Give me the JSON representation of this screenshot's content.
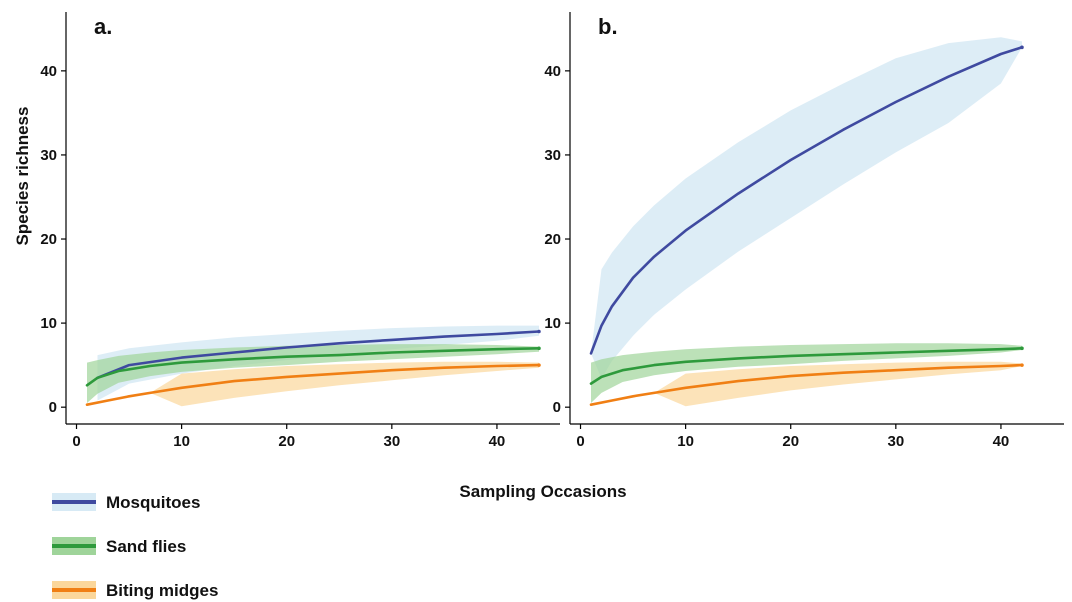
{
  "chart_data": {
    "type": "line",
    "xlabel": "Sampling Occasions",
    "ylabel": "Species richness",
    "legend": {
      "position": "bottom-left",
      "items": [
        {
          "label": "Mosquitoes",
          "line_color": "#3f4aa0",
          "fill_color": "#d7eaf5"
        },
        {
          "label": "Sand flies",
          "line_color": "#2e9a3c",
          "fill_color": "#9fd49a"
        },
        {
          "label": "Biting midges",
          "line_color": "#f07f14",
          "fill_color": "#fbd79b"
        }
      ]
    },
    "panels": [
      {
        "tag": "a.",
        "xlim": [
          -1,
          46
        ],
        "ylim": [
          -2,
          47
        ],
        "xticks": [
          0,
          10,
          20,
          30,
          40
        ],
        "yticks": [
          0,
          10,
          20,
          30,
          40
        ],
        "grid": false,
        "series": [
          {
            "name": "Mosquitoes",
            "color": "#3f4aa0",
            "band_color": "#d7eaf5",
            "x": [
              2,
              5,
              10,
              15,
              20,
              25,
              30,
              35,
              40,
              44
            ],
            "y": [
              3.5,
              5.0,
              5.9,
              6.5,
              7.1,
              7.6,
              8.0,
              8.4,
              8.7,
              9.0
            ],
            "lower": [
              0.8,
              2.8,
              4.0,
              4.9,
              5.6,
              6.3,
              6.9,
              7.4,
              7.9,
              8.5
            ],
            "upper": [
              6.2,
              7.0,
              7.7,
              8.3,
              8.7,
              9.1,
              9.4,
              9.6,
              9.7,
              9.7
            ]
          },
          {
            "name": "Sand flies",
            "color": "#2e9a3c",
            "band_color": "#9fd49a",
            "x": [
              1,
              2,
              4,
              7,
              10,
              15,
              20,
              25,
              30,
              35,
              40,
              44
            ],
            "y": [
              2.6,
              3.5,
              4.3,
              4.9,
              5.3,
              5.7,
              6.0,
              6.2,
              6.5,
              6.7,
              6.9,
              7.0
            ],
            "lower": [
              0.5,
              1.6,
              2.9,
              3.7,
              4.2,
              4.7,
              5.0,
              5.4,
              5.7,
              6.0,
              6.3,
              6.6
            ],
            "upper": [
              5.3,
              5.6,
              6.1,
              6.5,
              6.8,
              7.1,
              7.3,
              7.4,
              7.5,
              7.5,
              7.4,
              7.2
            ]
          },
          {
            "name": "Biting midges",
            "color": "#f07f14",
            "band_color": "#fbd79b",
            "x": [
              1,
              3,
              5,
              7,
              10,
              15,
              20,
              25,
              30,
              35,
              40,
              44
            ],
            "y": [
              0.3,
              0.8,
              1.3,
              1.7,
              2.3,
              3.1,
              3.6,
              4.0,
              4.4,
              4.7,
              4.9,
              5.0
            ],
            "lower": [
              0.3,
              0.8,
              1.3,
              1.7,
              0.1,
              1.1,
              1.9,
              2.6,
              3.2,
              3.8,
              4.3,
              4.7
            ],
            "upper": [
              0.3,
              0.8,
              1.3,
              1.7,
              4.0,
              4.5,
              4.9,
              5.1,
              5.3,
              5.4,
              5.4,
              5.3
            ]
          }
        ]
      },
      {
        "tag": "b.",
        "xlim": [
          -1,
          46
        ],
        "ylim": [
          -2,
          47
        ],
        "xticks": [
          0,
          10,
          20,
          30,
          40
        ],
        "yticks": [
          0,
          10,
          20,
          30,
          40
        ],
        "grid": false,
        "series": [
          {
            "name": "Mosquitoes",
            "color": "#3f4aa0",
            "band_color": "#d7eaf5",
            "x": [
              1,
              2,
              3,
              5,
              7,
              10,
              15,
              20,
              25,
              30,
              35,
              40,
              42
            ],
            "y": [
              6.4,
              9.7,
              12.0,
              15.4,
              17.9,
              21.0,
              25.4,
              29.4,
              33.0,
              36.3,
              39.3,
              42.0,
              42.8
            ],
            "lower": [
              6.4,
              3.4,
              5.5,
              8.5,
              11.0,
              14.0,
              18.5,
              22.5,
              26.5,
              30.3,
              33.8,
              38.5,
              42.8
            ],
            "upper": [
              6.4,
              16.4,
              18.4,
              21.5,
              24.0,
              27.2,
              31.5,
              35.3,
              38.5,
              41.5,
              43.3,
              44.0,
              43.5
            ]
          },
          {
            "name": "Sand flies",
            "color": "#2e9a3c",
            "band_color": "#9fd49a",
            "x": [
              1,
              2,
              4,
              7,
              10,
              15,
              20,
              25,
              30,
              35,
              40,
              42
            ],
            "y": [
              2.8,
              3.6,
              4.4,
              5.0,
              5.4,
              5.8,
              6.1,
              6.3,
              6.5,
              6.7,
              6.9,
              7.0
            ],
            "lower": [
              0.5,
              1.7,
              3.0,
              3.8,
              4.3,
              4.8,
              5.1,
              5.5,
              5.8,
              6.1,
              6.5,
              6.8
            ],
            "upper": [
              5.3,
              5.7,
              6.2,
              6.6,
              6.9,
              7.2,
              7.4,
              7.5,
              7.6,
              7.6,
              7.5,
              7.3
            ]
          },
          {
            "name": "Biting midges",
            "color": "#f07f14",
            "band_color": "#fbd79b",
            "x": [
              1,
              3,
              5,
              7,
              10,
              15,
              20,
              25,
              30,
              35,
              40,
              42
            ],
            "y": [
              0.3,
              0.8,
              1.3,
              1.7,
              2.3,
              3.1,
              3.7,
              4.1,
              4.4,
              4.7,
              4.9,
              5.0
            ],
            "lower": [
              0.3,
              0.8,
              1.3,
              1.7,
              0.1,
              1.1,
              2.0,
              2.7,
              3.3,
              3.9,
              4.4,
              4.9
            ],
            "upper": [
              0.3,
              0.8,
              1.3,
              1.7,
              4.0,
              4.5,
              4.9,
              5.1,
              5.3,
              5.4,
              5.4,
              5.2
            ]
          }
        ]
      }
    ]
  }
}
